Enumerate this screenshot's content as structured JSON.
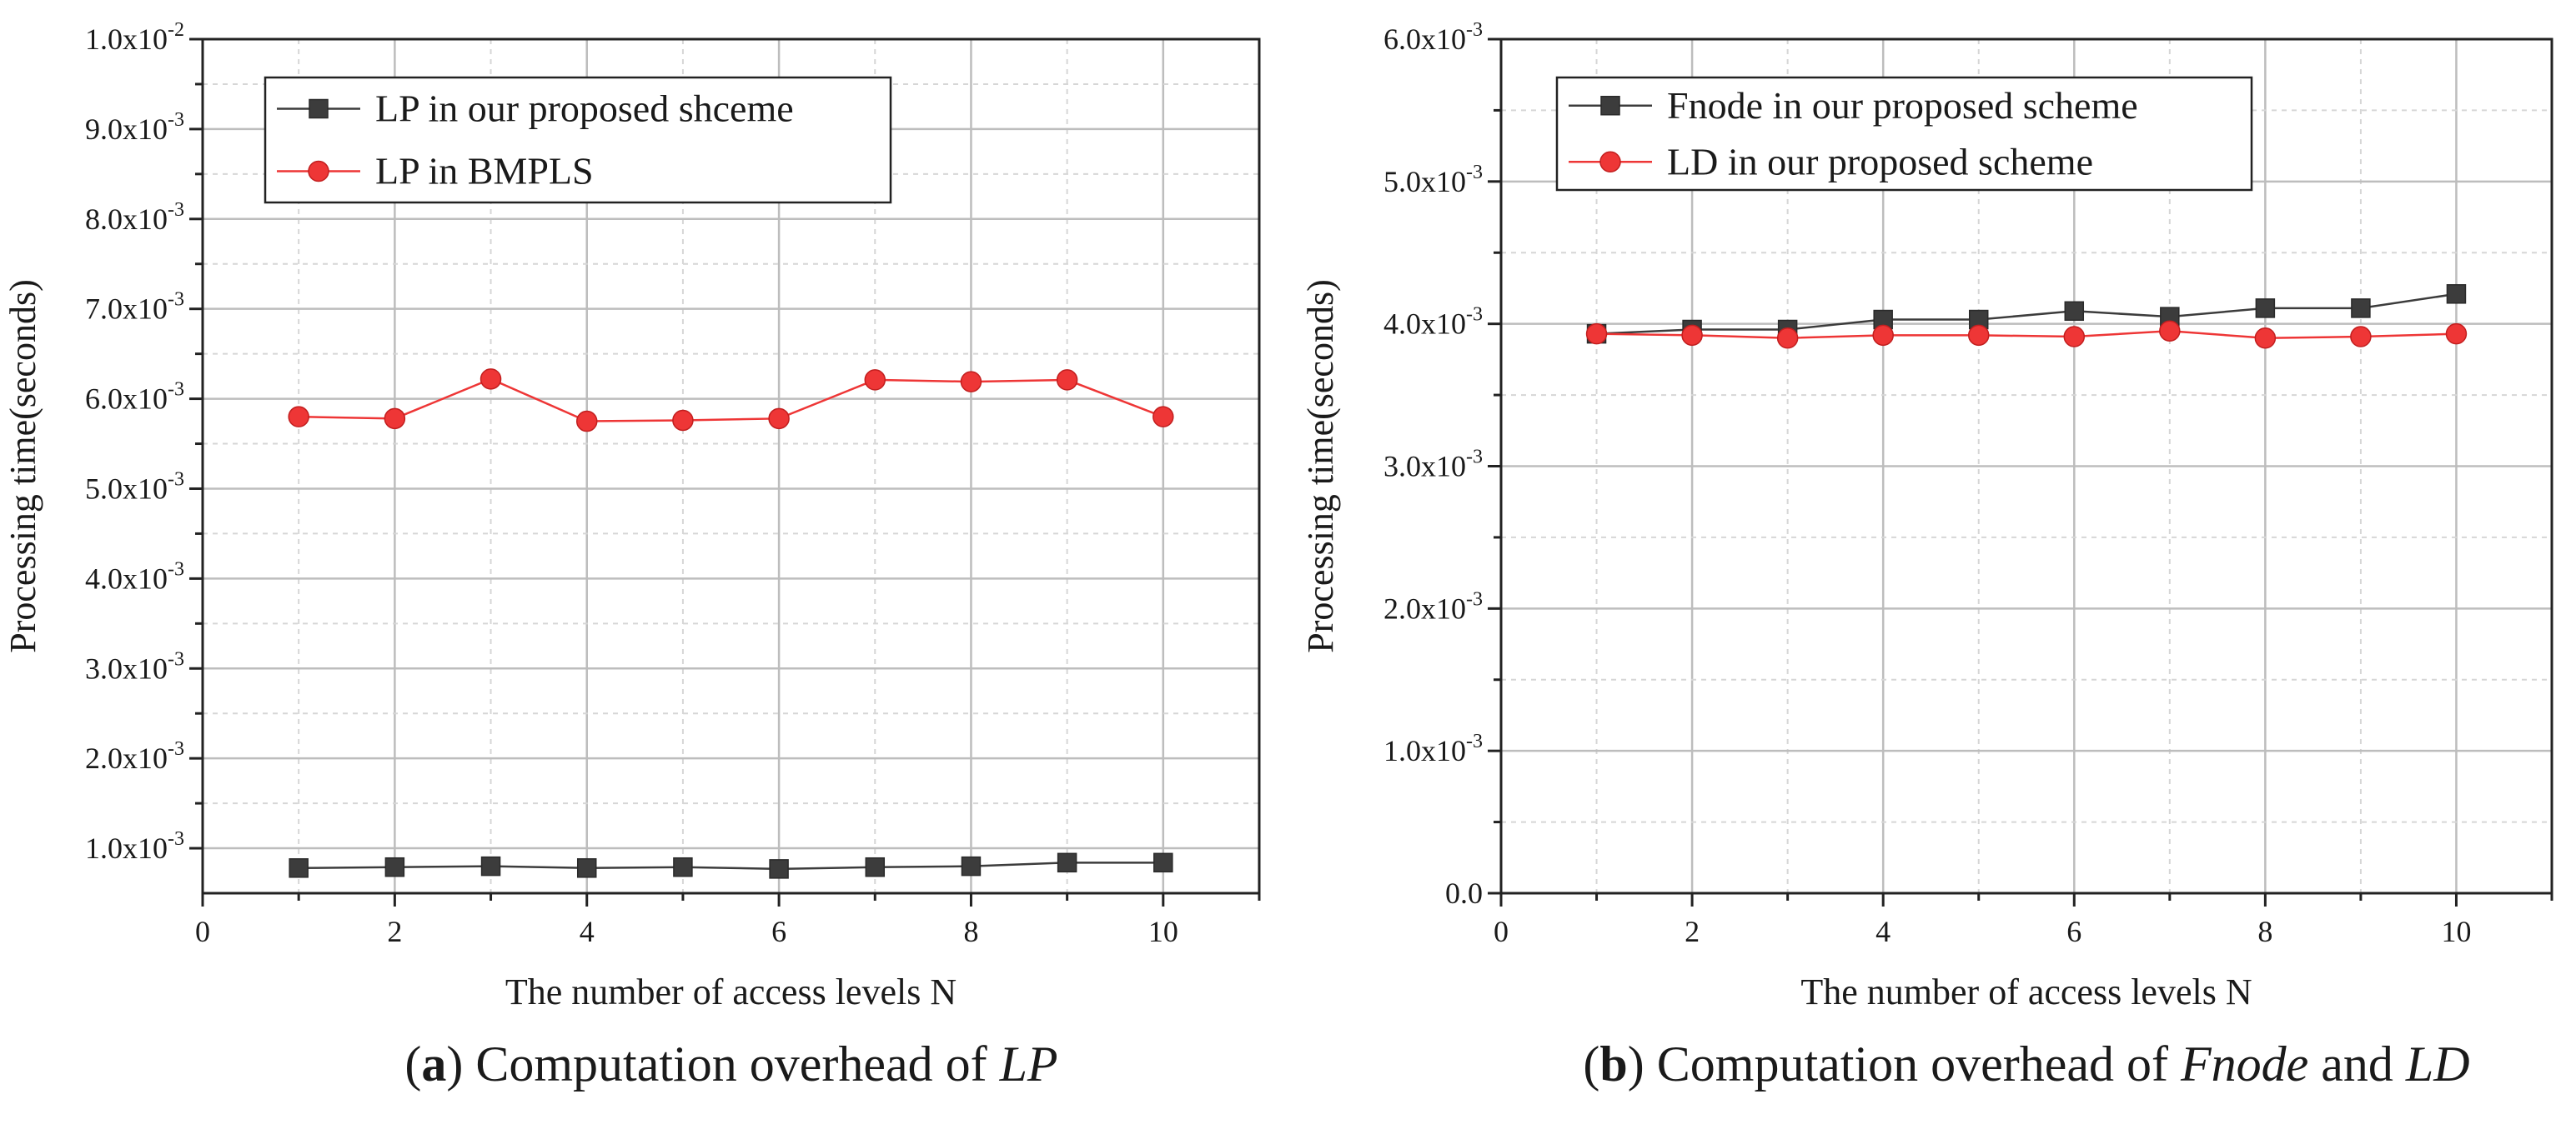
{
  "chart_data": [
    {
      "type": "line",
      "x_axis": {
        "label": "The number of access levels N",
        "range": [
          0,
          11
        ],
        "ticks": [
          0,
          2,
          4,
          6,
          8,
          10
        ]
      },
      "y_axis": {
        "label": "Processing time(seconds)",
        "range": [
          0.0005,
          0.01
        ],
        "tick_values": [
          0.001,
          0.002,
          0.003,
          0.004,
          0.005,
          0.006,
          0.007,
          0.008,
          0.009,
          0.01
        ],
        "tick_labels": [
          {
            "mant": "1.0x10",
            "exp": "-3"
          },
          {
            "mant": "2.0x10",
            "exp": "-3"
          },
          {
            "mant": "3.0x10",
            "exp": "-3"
          },
          {
            "mant": "4.0x10",
            "exp": "-3"
          },
          {
            "mant": "5.0x10",
            "exp": "-3"
          },
          {
            "mant": "6.0x10",
            "exp": "-3"
          },
          {
            "mant": "7.0x10",
            "exp": "-3"
          },
          {
            "mant": "8.0x10",
            "exp": "-3"
          },
          {
            "mant": "9.0x10",
            "exp": "-3"
          },
          {
            "mant": "1.0x10",
            "exp": "-2"
          }
        ]
      },
      "grid": true,
      "legend_position": "top-left",
      "caption": {
        "letter": "a",
        "text": "Computation overhead of",
        "italic": "LP",
        "suffix": ""
      },
      "x": [
        1,
        2,
        3,
        4,
        5,
        6,
        7,
        8,
        9,
        10
      ],
      "series": [
        {
          "name": "LP in our proposed shceme",
          "marker": "square",
          "color": "#3c3c3c",
          "values": [
            0.00078,
            0.00079,
            0.0008,
            0.00078,
            0.00079,
            0.00077,
            0.00079,
            0.0008,
            0.00084,
            0.00084
          ]
        },
        {
          "name": "LP in BMPLS",
          "marker": "circle",
          "color": "#ee3636",
          "values": [
            0.0058,
            0.00578,
            0.00622,
            0.00575,
            0.00576,
            0.00578,
            0.00621,
            0.00619,
            0.00621,
            0.0058
          ]
        }
      ]
    },
    {
      "type": "line",
      "x_axis": {
        "label": "The number of access levels N",
        "range": [
          0,
          11
        ],
        "ticks": [
          0,
          2,
          4,
          6,
          8,
          10
        ]
      },
      "y_axis": {
        "label": "Processing time(seconds)",
        "range": [
          0,
          0.006
        ],
        "tick_values": [
          0,
          0.001,
          0.002,
          0.003,
          0.004,
          0.005,
          0.006
        ],
        "tick_labels": [
          {
            "mant": "0.0",
            "exp": ""
          },
          {
            "mant": "1.0x10",
            "exp": "-3"
          },
          {
            "mant": "2.0x10",
            "exp": "-3"
          },
          {
            "mant": "3.0x10",
            "exp": "-3"
          },
          {
            "mant": "4.0x10",
            "exp": "-3"
          },
          {
            "mant": "5.0x10",
            "exp": "-3"
          },
          {
            "mant": "6.0x10",
            "exp": "-3"
          }
        ]
      },
      "grid": true,
      "legend_position": "top-left",
      "caption": {
        "letter": "b",
        "text": "Computation overhead of",
        "italic": "Fnode",
        "and": "and",
        "italic2": "LD"
      },
      "x": [
        1,
        2,
        3,
        4,
        5,
        6,
        7,
        8,
        9,
        10
      ],
      "series": [
        {
          "name": "Fnode in our proposed scheme",
          "marker": "square",
          "color": "#3c3c3c",
          "values": [
            0.00393,
            0.00396,
            0.00396,
            0.00403,
            0.00403,
            0.00409,
            0.00405,
            0.00411,
            0.00411,
            0.00421
          ]
        },
        {
          "name": "LD in our proposed scheme",
          "marker": "circle",
          "color": "#ee3636",
          "values": [
            0.00393,
            0.00392,
            0.0039,
            0.00392,
            0.00392,
            0.00391,
            0.00395,
            0.0039,
            0.00391,
            0.00393
          ]
        }
      ]
    }
  ]
}
